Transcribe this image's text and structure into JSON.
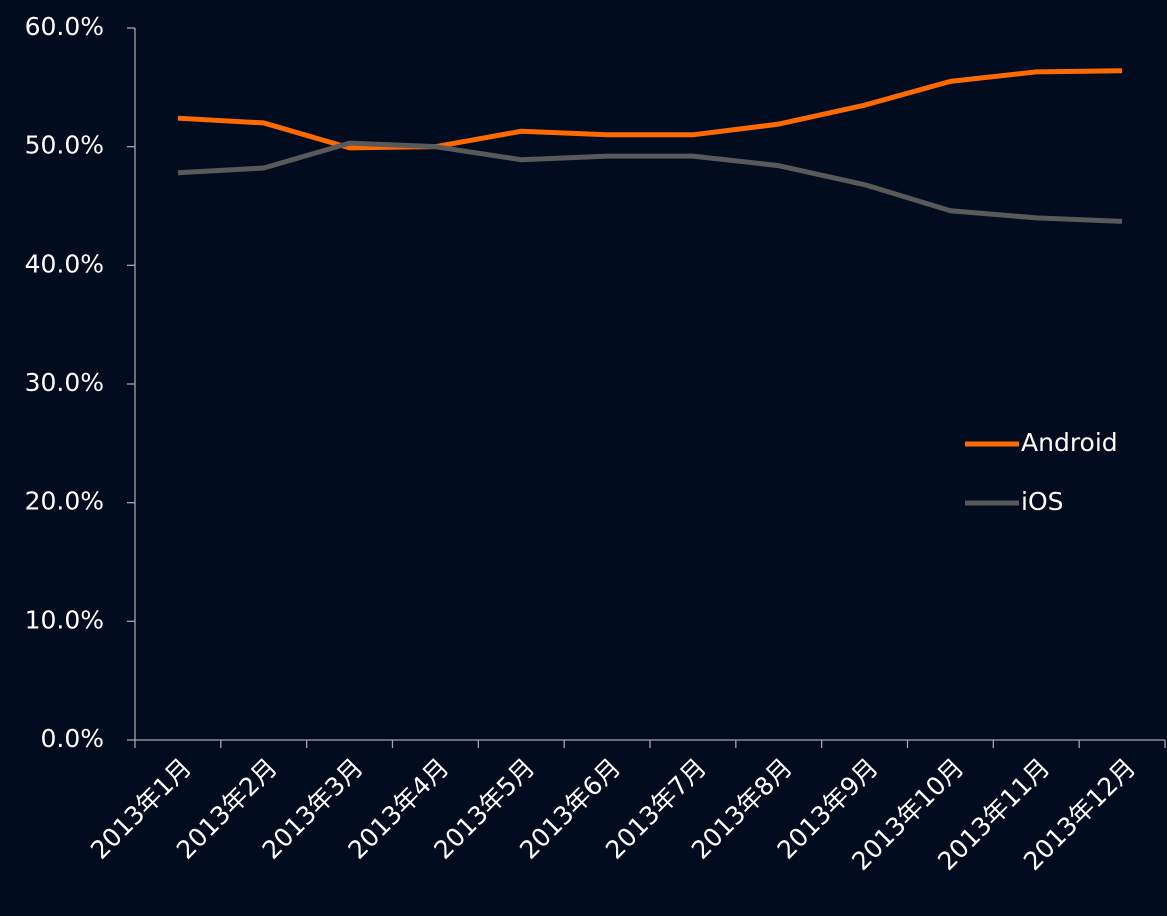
{
  "chart_data": {
    "type": "line",
    "categories": [
      "2013年1月",
      "2013年2月",
      "2013年3月",
      "2013年4月",
      "2013年5月",
      "2013年6月",
      "2013年7月",
      "2013年8月",
      "2013年9月",
      "2013年10月",
      "2013年11月",
      "2013年12月"
    ],
    "series": [
      {
        "name": "Android",
        "color": "#ff6a00",
        "values": [
          52.4,
          52.0,
          49.9,
          50.0,
          51.3,
          51.0,
          51.0,
          51.9,
          53.5,
          55.5,
          56.3,
          56.4
        ]
      },
      {
        "name": "iOS",
        "color": "#595959",
        "values": [
          47.8,
          48.2,
          50.3,
          50.0,
          48.9,
          49.2,
          49.2,
          48.4,
          46.8,
          44.6,
          44.0,
          43.7
        ]
      }
    ],
    "ylim": [
      0,
      60
    ],
    "yticks": [
      {
        "value": 0,
        "label": "0.0%"
      },
      {
        "value": 10,
        "label": "10.0%"
      },
      {
        "value": 20,
        "label": "20.0%"
      },
      {
        "value": 30,
        "label": "30.0%"
      },
      {
        "value": 40,
        "label": "40.0%"
      },
      {
        "value": 50,
        "label": "50.0%"
      },
      {
        "value": 60,
        "label": "60.0%"
      }
    ],
    "grid": false,
    "legend": "right"
  }
}
